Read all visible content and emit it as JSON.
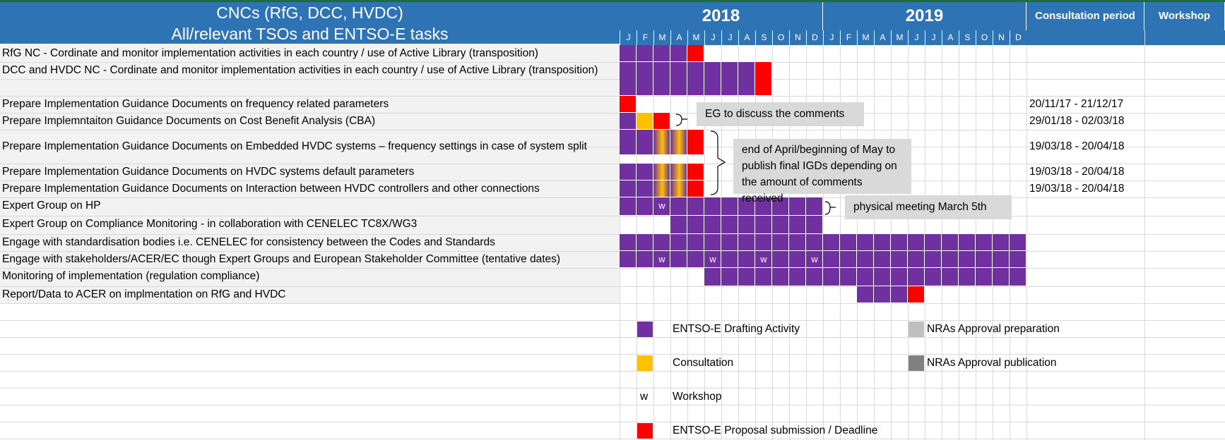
{
  "header": {
    "title_line1": "CNCs (RfG, DCC, HVDC)",
    "title_line2": "All/relevant TSOs and ENTSO-E tasks",
    "year_2018": "2018",
    "year_2019": "2019",
    "consultation_period": "Consultation period",
    "workshop": "Workshop",
    "months": [
      "J",
      "F",
      "M",
      "A",
      "M",
      "J",
      "J",
      "A",
      "S",
      "O",
      "N",
      "D",
      "J",
      "F",
      "M",
      "A",
      "M",
      "J",
      "J",
      "A",
      "S",
      "O",
      "N",
      "D"
    ]
  },
  "rows": [
    {
      "label": "RfG NC - Cordinate and monitor implementation activities in each country / use of Active Library (transposition)",
      "consultation": ""
    },
    {
      "label": "DCC and HVDC NC - Cordinate and monitor implementation activities in each country / use of Active Library (transposition)",
      "consultation": ""
    },
    {
      "label": "Prepare Implementation Guidance Documents on frequency related parameters",
      "consultation": "20/11/17 - 21/12/17"
    },
    {
      "label": "Prepare Implemntaiton Guidance Documents on Cost Benefit Analysis (CBA)",
      "consultation": "29/01/18 - 02/03/18"
    },
    {
      "label": "Prepare Implementation Guidance Documents on Embedded HVDC systems – frequency settings in case of system split",
      "consultation": "19/03/18 - 20/04/18"
    },
    {
      "label": "Prepare Implementation Guidance Documents on HVDC systems default parameters",
      "consultation": "19/03/18 - 20/04/18"
    },
    {
      "label": "Prepare Implementation Guidance Documents on Interaction between HVDC controllers and other connections",
      "consultation": "19/03/18 - 20/04/18"
    },
    {
      "label": "Expert Group on HP",
      "consultation": ""
    },
    {
      "label": "Expert Group on Compliance Monitoring - in collaboration with CENELEC TC8X/WG3",
      "consultation": ""
    },
    {
      "label": "Engage with standardisation bodies i.e. CENELEC for consistency between the Codes and Standards",
      "consultation": ""
    },
    {
      "label": "Engage with stakeholders/ACER/EC though Expert Groups and European Stakeholder Committee (tentative dates)",
      "consultation": ""
    },
    {
      "label": "Monitoring of implementation (regulation compliance)",
      "consultation": ""
    },
    {
      "label": "Report/Data to ACER on implmentation on RfG and HVDC",
      "consultation": ""
    }
  ],
  "gantt": [
    {
      "purple": [
        0,
        1,
        2,
        3
      ],
      "red": [
        4
      ]
    },
    {
      "purple": [
        0,
        1,
        2,
        3,
        4,
        5,
        6,
        7
      ],
      "red": [
        8
      ]
    },
    {
      "purple": [],
      "red": [
        0
      ]
    },
    {
      "purple": [
        0
      ],
      "orange": [
        1
      ],
      "red": [
        2
      ]
    },
    {
      "purple": [
        0,
        1
      ],
      "gradient": [
        2,
        3
      ],
      "red": [
        4
      ]
    },
    {
      "purple": [
        0,
        1
      ],
      "gradient": [
        2,
        3
      ],
      "red": [
        4
      ]
    },
    {
      "purple": [
        0,
        1
      ],
      "gradient": [
        2,
        3
      ],
      "red": [
        4
      ]
    },
    {
      "purple": [
        0,
        1,
        2,
        3,
        4,
        5,
        6,
        7,
        8,
        9,
        10,
        11
      ],
      "w": [
        2
      ]
    },
    {
      "purple": [
        3,
        4,
        5,
        6,
        7,
        8,
        9,
        10,
        11
      ]
    },
    {
      "purple": [
        0,
        1,
        2,
        3,
        4,
        5,
        6,
        7,
        8,
        9,
        10,
        11,
        12,
        13,
        14,
        15,
        16,
        17,
        18,
        19,
        20,
        21,
        22,
        23
      ]
    },
    {
      "purple": [
        0,
        1,
        2,
        3,
        4,
        5,
        6,
        7,
        8,
        9,
        10,
        11,
        12,
        13,
        14,
        15,
        16,
        17,
        18,
        19,
        20,
        21,
        22,
        23
      ],
      "w": [
        2,
        5,
        8,
        11
      ]
    },
    {
      "purple": [
        5,
        6,
        7,
        8,
        9,
        10,
        11,
        12,
        13,
        14,
        15,
        16,
        17,
        18,
        19,
        20,
        21,
        22,
        23
      ]
    },
    {
      "purple": [
        14,
        15,
        16
      ],
      "red": [
        17
      ]
    }
  ],
  "callouts": {
    "eg_discuss": "EG to discuss the comments",
    "end_april": "end of April/beginning of May to publish final IGDs depending on the amount of comments received",
    "physical_meeting": "physical meeting March 5th"
  },
  "workshop_mark": "w",
  "legend": {
    "drafting": "ENTSO-E Drafting Activity",
    "consultation": "Consultation",
    "workshop_symbol": "w",
    "workshop": "Workshop",
    "proposal": "ENTSO-E Proposal submission / Deadline",
    "nras_prep": "NRAs Approval preparation",
    "nras_pub": "NRAs Approval publication"
  },
  "colors": {
    "header_blue": "#2e74b5",
    "drafting_purple": "#7030a0",
    "deadline_red": "#ff0000",
    "consultation_orange": "#ffc000",
    "nras_prep_grey": "#bfbfbf",
    "nras_pub_grey": "#808080",
    "label_bg": "#f2f2f2",
    "callout_grey": "#d9d9d9"
  }
}
